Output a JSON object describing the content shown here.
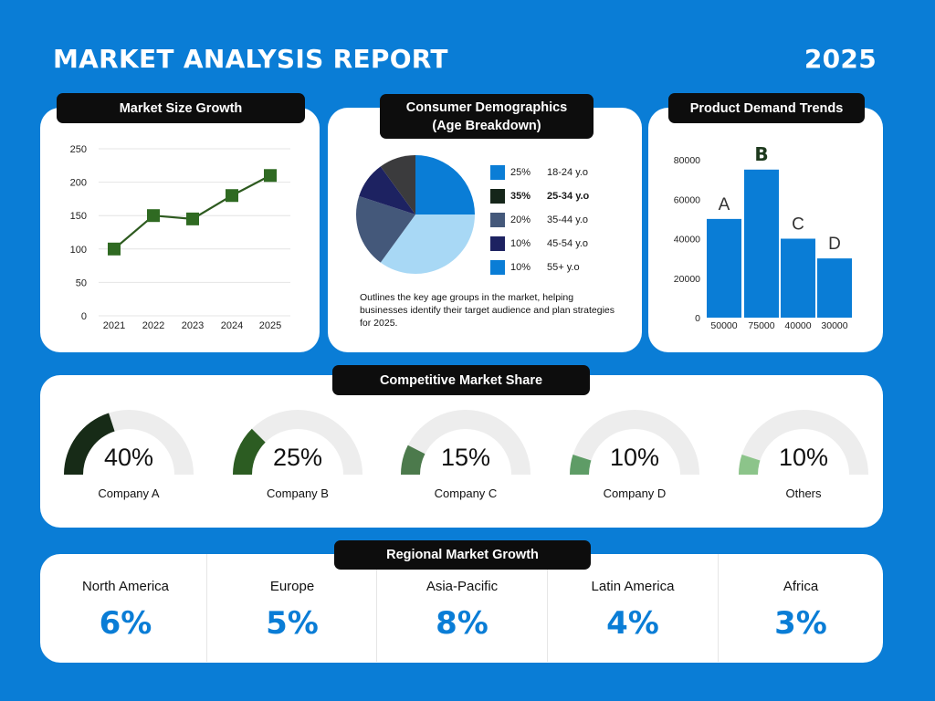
{
  "header": {
    "title": "MARKET ANALYSIS REPORT",
    "year": "2025"
  },
  "market_size": {
    "heading": "Market Size Growth"
  },
  "demographics": {
    "heading_line1": "Consumer Demographics",
    "heading_line2": "(Age Breakdown)",
    "description": "Outlines the key age groups in the market, helping businesses identify their target audience and plan strategies for 2025."
  },
  "product_demand": {
    "heading": "Product Demand Trends"
  },
  "market_share": {
    "heading": "Competitive Market Share"
  },
  "regional": {
    "heading": "Regional Market Growth",
    "regions": [
      {
        "name": "North America",
        "value": "6%"
      },
      {
        "name": "Europe",
        "value": "5%"
      },
      {
        "name": "Asia-Pacific",
        "value": "8%"
      },
      {
        "name": "Latin America",
        "value": "4%"
      },
      {
        "name": "Africa",
        "value": "3%"
      }
    ]
  },
  "colors": {
    "background": "#0a7dd6",
    "line": "#2d5a1f",
    "marker": "#2f6a22",
    "bar": "#0a7dd6",
    "gauge_track": "#ededed"
  },
  "chart_data": [
    {
      "type": "line",
      "x": [
        "2021",
        "2022",
        "2023",
        "2024",
        "2025"
      ],
      "values": [
        100,
        150,
        145,
        180,
        210
      ],
      "yticks": [
        "250",
        "200",
        "150",
        "100",
        "50",
        "0"
      ],
      "ylim": [
        0,
        250
      ],
      "grid": true
    },
    {
      "type": "pie",
      "slices": [
        {
          "label": "18-24 y.o",
          "value": 25,
          "pct": "25%",
          "color": "#0a7dd6",
          "bold": false
        },
        {
          "label": "25-34 y.o",
          "value": 35,
          "pct": "35%",
          "color": "#a8d8f5",
          "legend_color": "#15261a",
          "bold": true
        },
        {
          "label": "35-44 y.o",
          "value": 20,
          "pct": "20%",
          "color": "#44587a",
          "bold": false
        },
        {
          "label": "45-54 y.o",
          "value": 10,
          "pct": "10%",
          "color": "#1d2261",
          "bold": false
        },
        {
          "label": "55+ y.o",
          "value": 10,
          "pct": "10%",
          "color": "#3b3b3d",
          "legend_color": "#0a7dd6",
          "bold": false
        }
      ]
    },
    {
      "type": "bar",
      "categories": [
        "A",
        "B",
        "C",
        "D"
      ],
      "values": [
        50000,
        75000,
        40000,
        30000
      ],
      "value_labels": [
        "50000",
        "75000",
        "40000",
        "30000"
      ],
      "yticks": [
        "80000",
        "60000",
        "40000",
        "20000",
        "0"
      ],
      "ylim": [
        0,
        80000
      ],
      "highlight": "B"
    },
    {
      "type": "gauge",
      "items": [
        {
          "name": "Company A",
          "value": 40,
          "label": "40%",
          "color": "#172b17"
        },
        {
          "name": "Company B",
          "value": 25,
          "label": "25%",
          "color": "#2c5c22"
        },
        {
          "name": "Company C",
          "value": 15,
          "label": "15%",
          "color": "#4c7a4c"
        },
        {
          "name": "Company D",
          "value": 10,
          "label": "10%",
          "color": "#5e9c66"
        },
        {
          "name": "Others",
          "value": 10,
          "label": "10%",
          "color": "#8cc48a"
        }
      ]
    }
  ]
}
